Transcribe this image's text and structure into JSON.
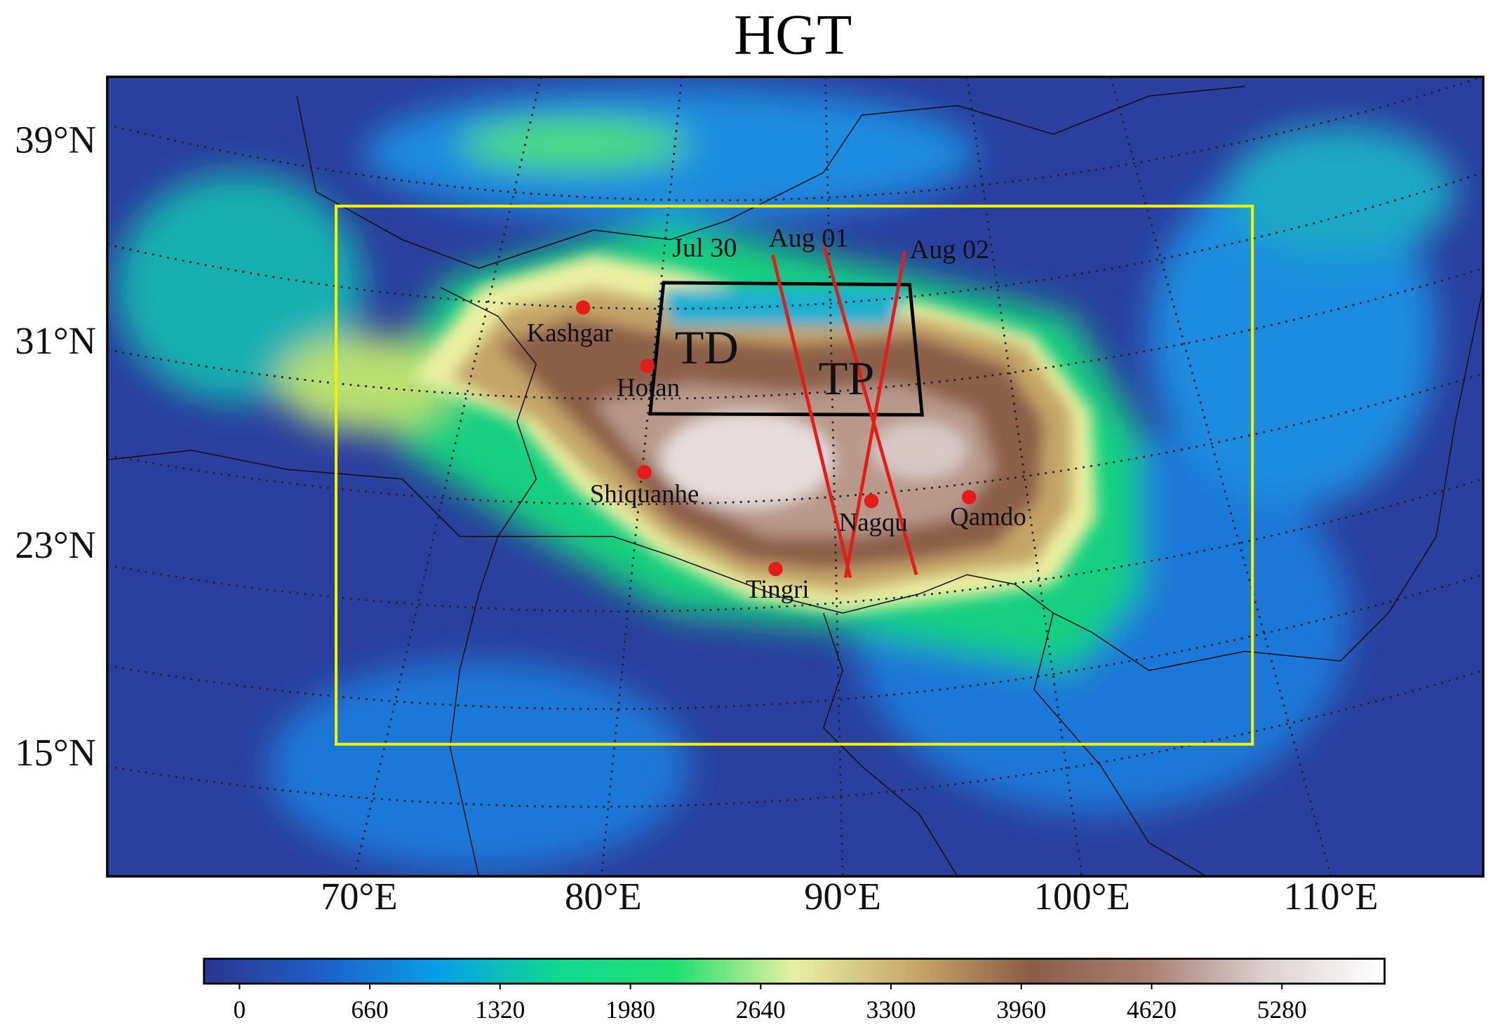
{
  "title": "HGT",
  "lat_labels": [
    "39°N",
    "31°N",
    "23°N",
    "15°N"
  ],
  "lon_labels": [
    "70°E",
    "80°E",
    "90°E",
    "100°E",
    "110°E"
  ],
  "regions": [
    "TD",
    "TP"
  ],
  "tracks": [
    "Jul 30",
    "Aug 01",
    "Aug 02"
  ],
  "stations": [
    "Kashgar",
    "Hotan",
    "Shiquanhe",
    "Nagqu",
    "Qamdo",
    "Tingri"
  ],
  "colorbar": {
    "range": [
      -180,
      5800
    ],
    "ticks": [
      0,
      660,
      1320,
      1980,
      2640,
      3300,
      3960,
      4620,
      5280
    ],
    "colors": [
      "#2b3590",
      "#1f5fc8",
      "#08a0e8",
      "#10d890",
      "#20e070",
      "#e8f0a0",
      "#c8a868",
      "#8c5c48",
      "#a88070",
      "#dcd0d0",
      "#ffffff"
    ]
  }
}
